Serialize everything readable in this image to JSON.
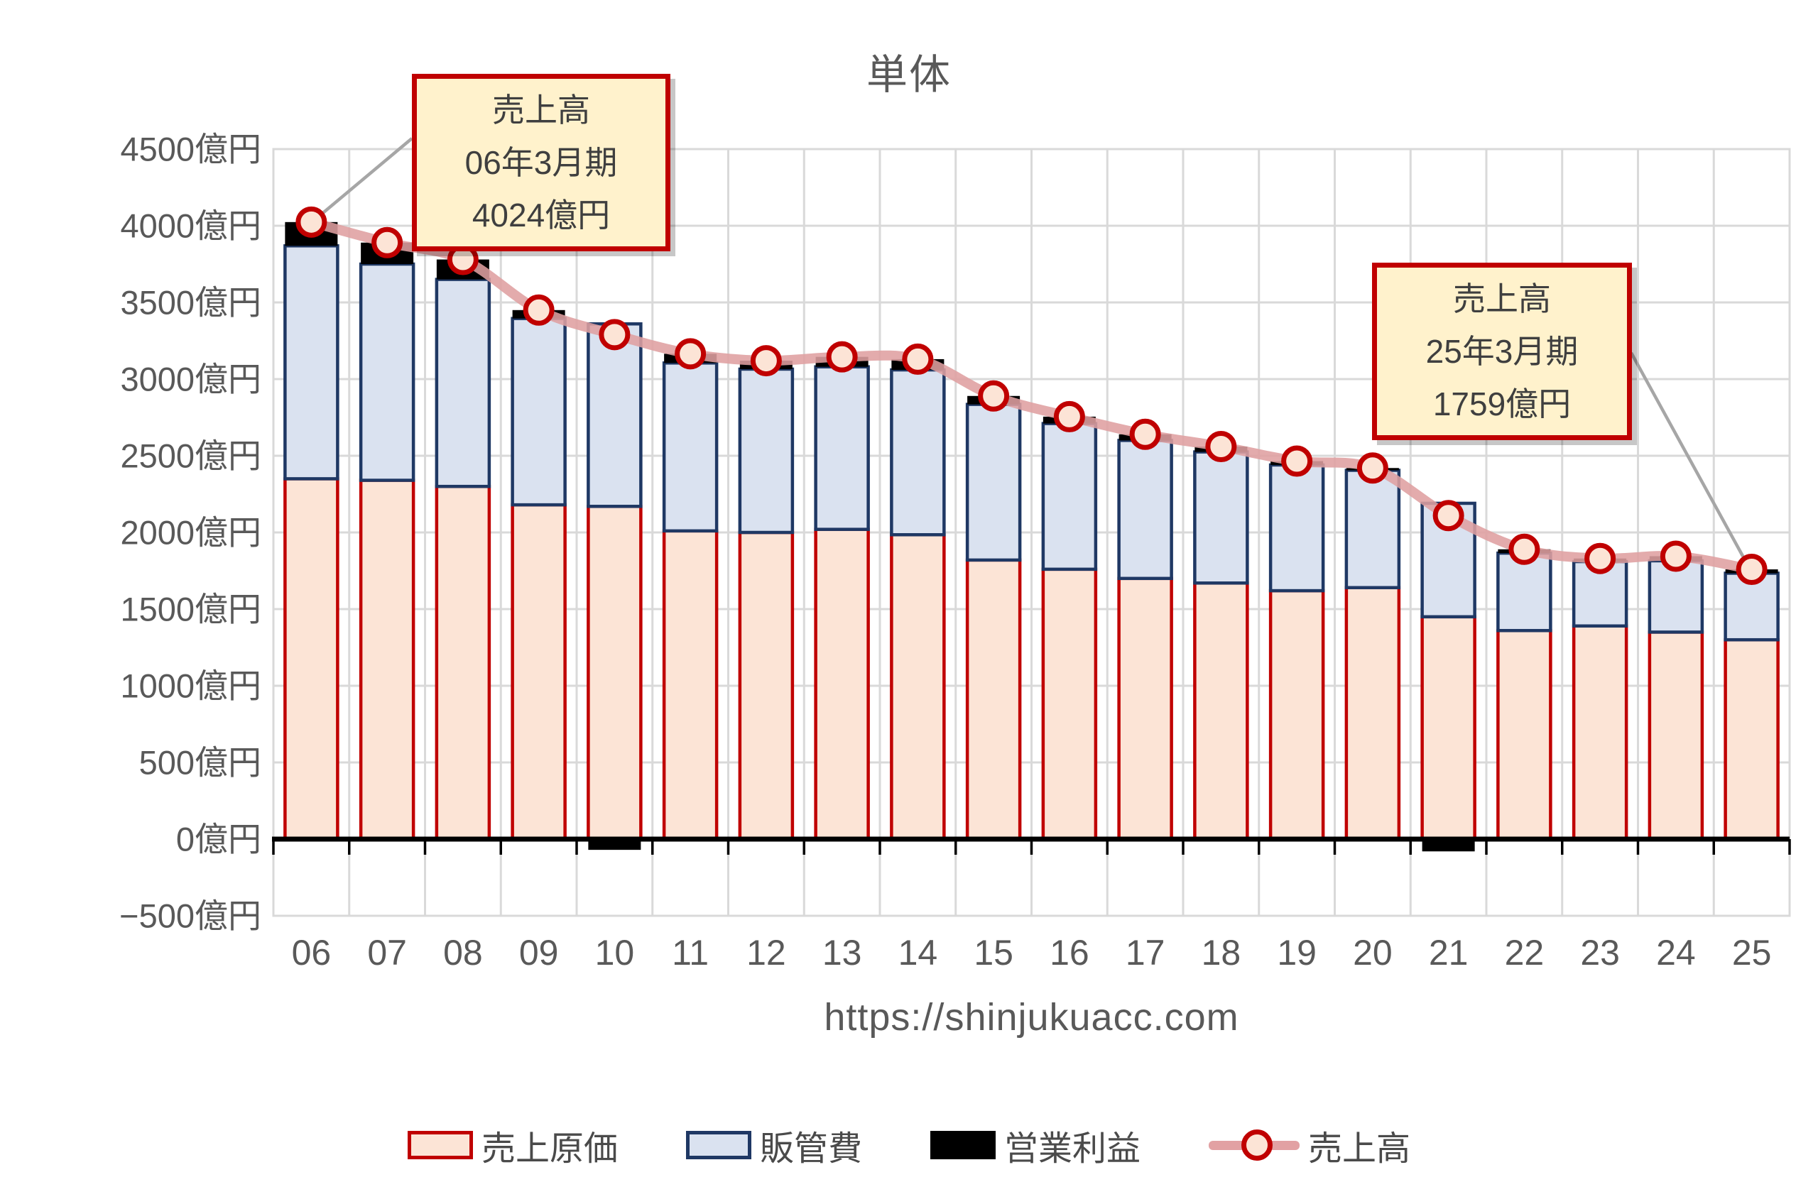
{
  "title": "単体",
  "source_url": "https://shinjukuacc.com",
  "y_axis": {
    "unit": "億円",
    "min": -500,
    "max": 4500,
    "step": 500,
    "tick_labels": [
      "4500億円",
      "4000億円",
      "3500億円",
      "3000億円",
      "2500億円",
      "2000億円",
      "1500億円",
      "1000億円",
      "500億円",
      "0億円",
      "−500億円"
    ]
  },
  "x_axis": {
    "labels": [
      "06",
      "07",
      "08",
      "09",
      "10",
      "11",
      "12",
      "13",
      "14",
      "15",
      "16",
      "17",
      "18",
      "19",
      "20",
      "21",
      "22",
      "23",
      "24",
      "25"
    ]
  },
  "legend": [
    {
      "label": "売上原価",
      "swatch": "box-pink"
    },
    {
      "label": "販管費",
      "swatch": "box-blue"
    },
    {
      "label": "営業利益",
      "swatch": "box-black"
    },
    {
      "label": "売上高",
      "swatch": "line-marker"
    }
  ],
  "callouts": [
    {
      "lines": [
        "売上高",
        "06年3月期",
        "4024億円"
      ],
      "anchor_year": "06"
    },
    {
      "lines": [
        "売上高",
        "25年3月期",
        "1759億円"
      ],
      "anchor_year": "25"
    }
  ],
  "colors": {
    "cogs_fill": "#FCE4D6",
    "cogs_border": "#C00000",
    "sga_fill": "#DAE2F0",
    "sga_border": "#1F3864",
    "oi_fill": "#000000",
    "revenue_line": "#DF9FA1",
    "marker_fill": "#FCE4D6",
    "marker_ring": "#C00000",
    "gridline": "#D9D9D9",
    "axis_line": "#000000",
    "leader_line": "#A6A6A6",
    "axis_text": "#595959"
  },
  "chart_data": {
    "type": "combo: stacked bar + line",
    "units": "億円",
    "categories": [
      "06",
      "07",
      "08",
      "09",
      "10",
      "11",
      "12",
      "13",
      "14",
      "15",
      "16",
      "17",
      "18",
      "19",
      "20",
      "21",
      "22",
      "23",
      "24",
      "25"
    ],
    "series": [
      {
        "name": "売上原価",
        "type": "bar",
        "stack": true,
        "values": [
          2350,
          2340,
          2300,
          2180,
          2170,
          2010,
          2000,
          2020,
          1985,
          1820,
          1760,
          1700,
          1670,
          1620,
          1640,
          1450,
          1360,
          1390,
          1350,
          1300
        ]
      },
      {
        "name": "販管費",
        "type": "bar",
        "stack": true,
        "values": [
          1519,
          1410,
          1350,
          1215,
          1190,
          1095,
          1065,
          1060,
          1075,
          1015,
          950,
          900,
          855,
          820,
          765,
          740,
          505,
          420,
          465,
          434
        ]
      },
      {
        "name": "営業利益",
        "type": "bar",
        "stack": true,
        "values": [
          155,
          140,
          130,
          55,
          -70,
          60,
          55,
          65,
          70,
          55,
          45,
          40,
          35,
          25,
          15,
          -80,
          25,
          20,
          30,
          25
        ]
      },
      {
        "name": "売上高",
        "type": "line",
        "values": [
          4024,
          3890,
          3780,
          3450,
          3290,
          3165,
          3120,
          3145,
          3130,
          2890,
          2755,
          2640,
          2560,
          2465,
          2420,
          2110,
          1890,
          1830,
          1845,
          1759
        ]
      }
    ],
    "ylim": [
      -500,
      4500
    ],
    "grid": true,
    "legend_position": "bottom",
    "annotated_points": [
      {
        "year": "06",
        "series": "売上高",
        "value": 4024
      },
      {
        "year": "25",
        "series": "売上高",
        "value": 1759
      }
    ]
  }
}
